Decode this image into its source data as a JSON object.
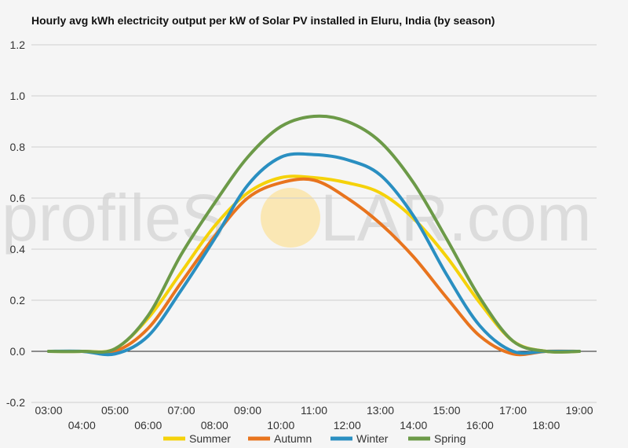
{
  "chart_data": {
    "type": "line",
    "title": "Hourly avg kWh electricity output per kW of Solar PV installed in Eluru, India (by season)",
    "xlabel": "",
    "ylabel": "",
    "ylim": [
      -0.2,
      1.2
    ],
    "yticks": [
      "-0.2",
      "0.0",
      "0.2",
      "0.4",
      "0.6",
      "0.8",
      "1.0",
      "1.2"
    ],
    "ytick_values": [
      -0.2,
      0.0,
      0.2,
      0.4,
      0.6,
      0.8,
      1.0,
      1.2
    ],
    "categories": [
      "03:00",
      "04:00",
      "05:00",
      "06:00",
      "07:00",
      "08:00",
      "09:00",
      "10:00",
      "11:00",
      "12:00",
      "13:00",
      "14:00",
      "15:00",
      "16:00",
      "17:00",
      "18:00",
      "19:00"
    ],
    "grid": true,
    "legend_position": "bottom",
    "series": [
      {
        "name": "Summer",
        "color": "#f5d20a",
        "values": [
          0.0,
          0.0,
          0.01,
          0.13,
          0.31,
          0.49,
          0.62,
          0.68,
          0.68,
          0.66,
          0.62,
          0.52,
          0.37,
          0.19,
          0.04,
          0.0,
          0.0
        ]
      },
      {
        "name": "Autumn",
        "color": "#e8741e",
        "values": [
          0.0,
          0.0,
          0.0,
          0.09,
          0.27,
          0.45,
          0.6,
          0.66,
          0.67,
          0.6,
          0.5,
          0.37,
          0.21,
          0.06,
          -0.01,
          0.0,
          0.0
        ]
      },
      {
        "name": "Winter",
        "color": "#2a8fc1",
        "values": [
          0.0,
          0.0,
          -0.01,
          0.06,
          0.24,
          0.44,
          0.65,
          0.76,
          0.77,
          0.75,
          0.69,
          0.53,
          0.3,
          0.1,
          0.0,
          0.0,
          0.0
        ]
      },
      {
        "name": "Spring",
        "color": "#6c9a48",
        "values": [
          0.0,
          0.0,
          0.01,
          0.14,
          0.38,
          0.58,
          0.76,
          0.88,
          0.92,
          0.9,
          0.82,
          0.66,
          0.44,
          0.21,
          0.04,
          0.0,
          0.0
        ]
      }
    ]
  },
  "watermark": {
    "left": "profileS",
    "right": "LAR.com",
    "sun_color": "#fbe3a4"
  }
}
